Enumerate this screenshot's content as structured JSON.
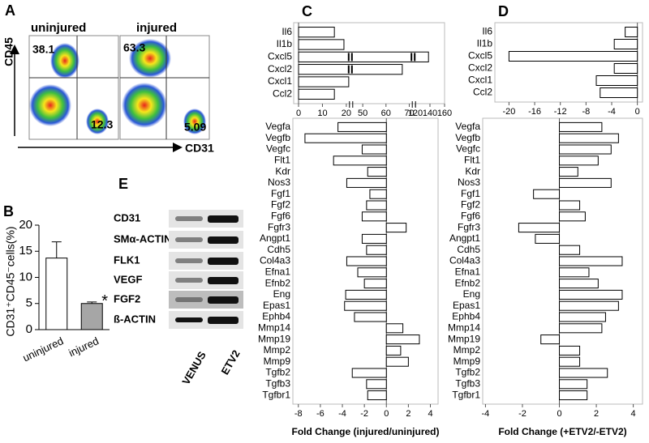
{
  "panel_a": {
    "label": "A",
    "x_label": "CD31",
    "y_label": "CD45",
    "plots": [
      {
        "title": "uninjured",
        "upper_left": 38.1,
        "lower_right": 12.3
      },
      {
        "title": "injured",
        "upper_left": 63.3,
        "lower_right": 5.09
      }
    ]
  },
  "panel_e": {
    "label": "E",
    "proteins": [
      "CD31",
      "SMα-ACTIN",
      "FLK1",
      "VEGF",
      "FGF2",
      "ß-ACTIN"
    ],
    "lanes": [
      "VENUS",
      "ETV2"
    ]
  },
  "chart_data": [
    {
      "type": "bar",
      "panel": "B",
      "y_label": "CD31⁺CD45⁻cells(%)",
      "categories": [
        "uninjured",
        "injured"
      ],
      "values": [
        13.7,
        5.0
      ],
      "errors": [
        3.1,
        0.3
      ],
      "colors": [
        "#ffffff",
        "#a6a6a6"
      ],
      "annotation": "*",
      "ylim": [
        0,
        20
      ],
      "yticks": [
        0,
        5,
        10,
        15,
        20
      ]
    },
    {
      "type": "hbar",
      "panel": "C",
      "categories": [
        "Il6",
        "Il1b",
        "Cxcl5",
        "Cxcl2",
        "Cxcl1",
        "Ccl2"
      ],
      "values": [
        15,
        19,
        138,
        67,
        21,
        15
      ],
      "color": "#ffffff",
      "xsegments": [
        [
          0,
          22
        ],
        [
          45,
          72
        ],
        [
          118,
          160
        ]
      ],
      "xticks": [
        0,
        10,
        20,
        50,
        60,
        70,
        120,
        140,
        160
      ]
    },
    {
      "type": "hbar",
      "x_label": "Fold Change (injured/uninjured)",
      "categories": [
        "Vegfa",
        "Vegfb",
        "Vegfc",
        "Flt1",
        "Kdr",
        "Nos3",
        "Fgf1",
        "Fgf2",
        "Fgf6",
        "Fgfr3",
        "Angpt1",
        "Cdh5",
        "Col4a3",
        "Efna1",
        "Efnb2",
        "Eng",
        "Epas1",
        "Ephb4",
        "Mmp14",
        "Mmp19",
        "Mmp2",
        "Mmp9",
        "Tgfb2",
        "Tgfb3",
        "Tgfbr1"
      ],
      "values": [
        -4.4,
        -7.4,
        -2.2,
        -4.8,
        -1.7,
        -3.6,
        -1.5,
        -1.8,
        -2.2,
        1.8,
        -2.2,
        -1.8,
        -3.6,
        -2.6,
        -2.0,
        -3.7,
        -3.8,
        -2.9,
        1.5,
        3.0,
        1.3,
        2.0,
        -3.1,
        -1.8,
        -1.7
      ],
      "color": "#ffffff",
      "xlim": [
        -8.5,
        4.7
      ],
      "xticks": [
        -8,
        -6,
        -4,
        -2,
        0,
        2,
        4
      ]
    },
    {
      "type": "hbar",
      "panel": "D",
      "categories": [
        "Il6",
        "Il1b",
        "Cxcl5",
        "Cxcl2",
        "Cxcl1",
        "Ccl2"
      ],
      "values": [
        -1.9,
        -3.6,
        -20,
        -3.6,
        -6.4,
        -5.8
      ],
      "color": "#ffffff",
      "xlim": [
        -22.2,
        0.8
      ],
      "xticks": [
        -20,
        -16,
        -12,
        -8,
        -4,
        0
      ]
    },
    {
      "type": "hbar",
      "x_label": "Fold Change (+ETV2/-ETV2)",
      "categories": [
        "Vegfa",
        "Vegfb",
        "Vegfc",
        "Flt1",
        "Kdr",
        "Nos3",
        "Fgf1",
        "Fgf2",
        "Fgf6",
        "Fgfr3",
        "Angpt1",
        "Cdh5",
        "Col4a3",
        "Efna1",
        "Efnb2",
        "Eng",
        "Epas1",
        "Ephb4",
        "Mmp14",
        "Mmp19",
        "Mmp2",
        "Mmp9",
        "Tgfb2",
        "Tgfb3",
        "Tgfbr1"
      ],
      "values": [
        2.3,
        3.2,
        2.8,
        2.1,
        1.0,
        2.8,
        -1.4,
        1.1,
        1.4,
        -2.2,
        -1.3,
        1.1,
        3.4,
        1.6,
        2.1,
        3.4,
        3.2,
        2.5,
        2.3,
        -1.0,
        1.1,
        1.1,
        2.6,
        1.5,
        1.5
      ],
      "color": "#ffffff",
      "xlim": [
        -4.15,
        4.5
      ],
      "xticks": [
        -4,
        -2,
        0,
        2,
        4
      ]
    }
  ]
}
